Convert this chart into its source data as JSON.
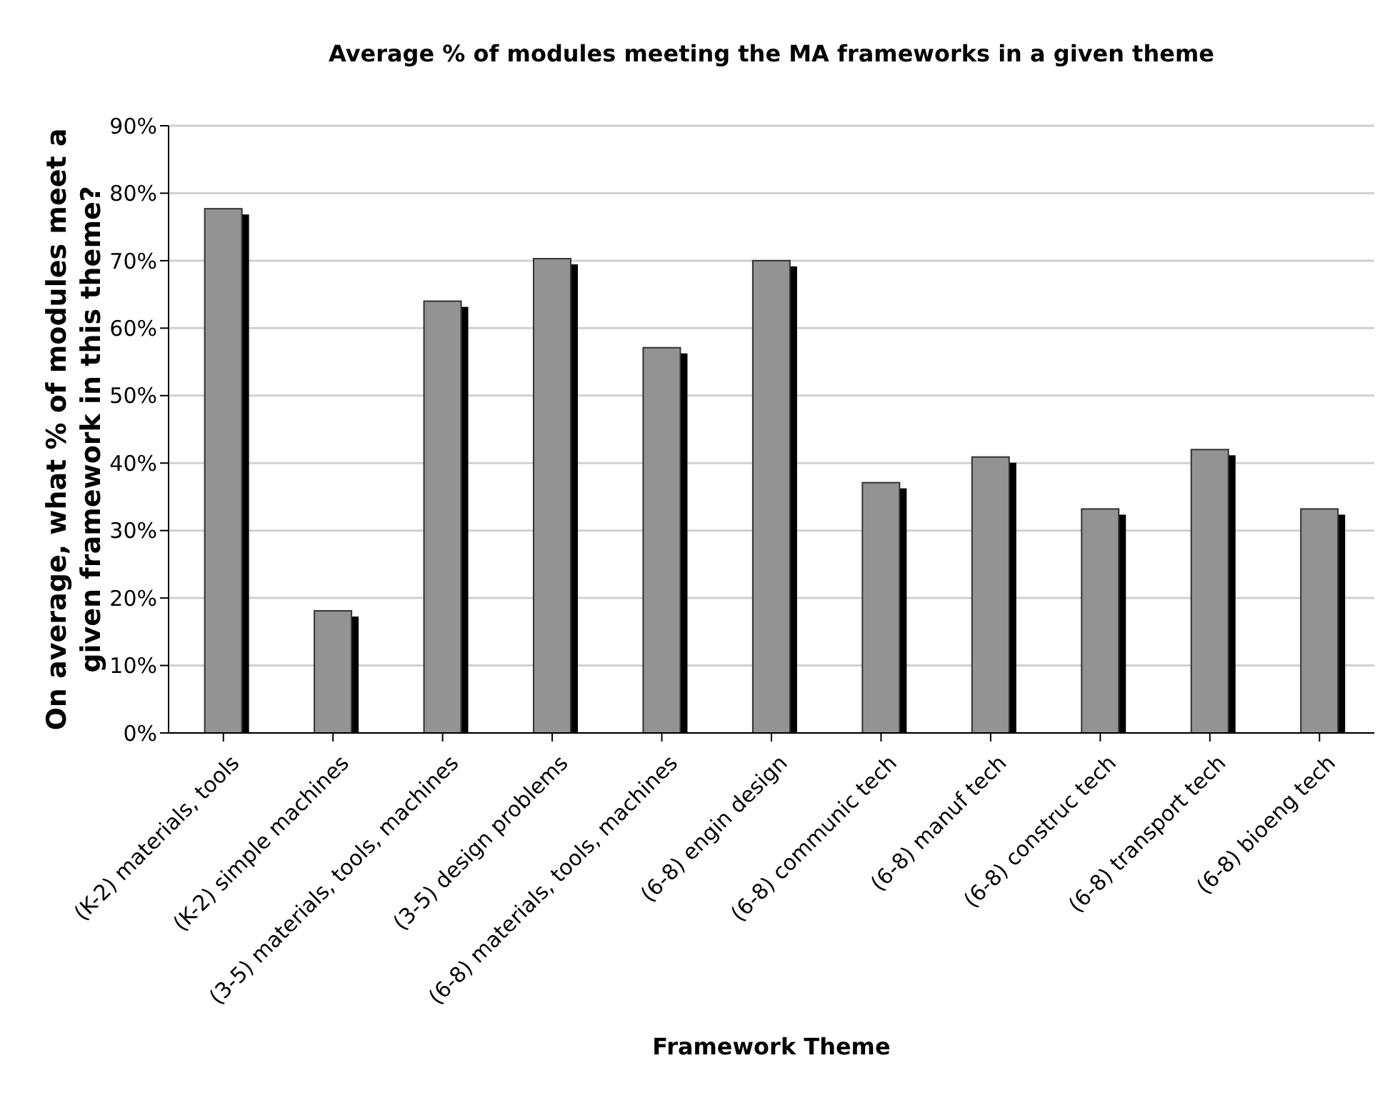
{
  "chart_data": {
    "type": "bar",
    "title": "Average % of modules meeting the MA frameworks in a given theme",
    "xlabel": "Framework Theme",
    "ylabel": "On average, what % of modules meet a given framework in this theme?",
    "categories": [
      "(K-2) materials, tools",
      "(K-2) simple machines",
      "(3-5) materials, tools, machines",
      "(3-5) design problems",
      "(6-8) materials, tools, machines",
      "(6-8) engin design",
      "(6-8) communic tech",
      "(6-8) manuf tech",
      "(6-8) construc tech",
      "(6-8) transport tech",
      "(6-8) bioeng tech"
    ],
    "values": [
      77.7,
      18.1,
      64.0,
      70.3,
      57.1,
      70.0,
      37.1,
      40.9,
      33.2,
      42.0,
      33.2
    ],
    "color": "#939393",
    "ylim": [
      0,
      90
    ],
    "yticks": [
      {
        "value": 0,
        "label": "0%"
      },
      {
        "value": 10,
        "label": "10%"
      },
      {
        "value": 20,
        "label": "20%"
      },
      {
        "value": 30,
        "label": "30%"
      },
      {
        "value": 40,
        "label": "40%"
      },
      {
        "value": 50,
        "label": "50%"
      },
      {
        "value": 60,
        "label": "60%"
      },
      {
        "value": 70,
        "label": "70%"
      },
      {
        "value": 80,
        "label": "80%"
      },
      {
        "value": 90,
        "label": "90%"
      }
    ],
    "grid": "y",
    "legend": false
  }
}
